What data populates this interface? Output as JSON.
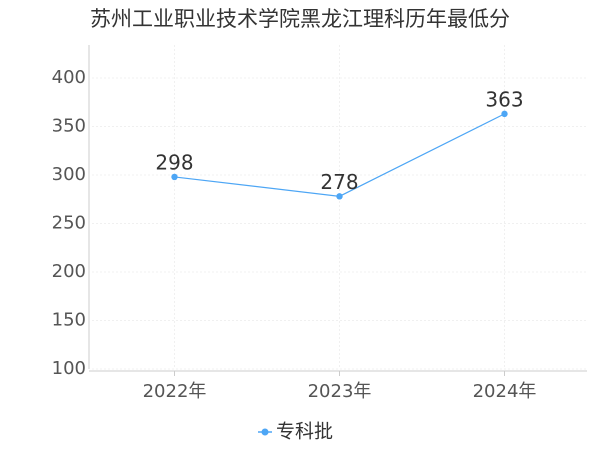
{
  "chart_data": {
    "type": "line",
    "title": "苏州工业职业技术学院黑龙江理科历年最低分",
    "categories": [
      "2022年",
      "2023年",
      "2024年"
    ],
    "series": [
      {
        "name": "专科批",
        "color": "#4da6f5",
        "values": [
          298,
          278,
          363
        ]
      }
    ],
    "ylim": [
      100,
      434
    ],
    "yticks": [
      100,
      150,
      200,
      250,
      300,
      350,
      400
    ],
    "grid": true,
    "legend": "bottom"
  }
}
